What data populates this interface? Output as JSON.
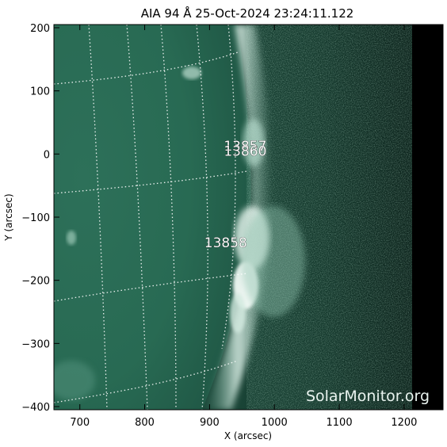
{
  "title": "AIA 94 Å 25-Oct-2024 23:24:11.122",
  "x_axis": {
    "label": "X (arcsec)",
    "range": [
      660,
      1260
    ],
    "ticks": [
      700,
      800,
      900,
      1000,
      1100,
      1200
    ],
    "tick_labels": [
      "700",
      "800",
      "900",
      "1000",
      "1100",
      "1200"
    ]
  },
  "y_axis": {
    "label": "Y (arcsec)",
    "range": [
      -405,
      205
    ],
    "ticks": [
      200,
      100,
      0,
      -100,
      -200,
      -300,
      -400
    ],
    "tick_labels": [
      "200",
      "100",
      "0",
      "−100",
      "−200",
      "−300",
      "−400"
    ]
  },
  "active_regions": [
    {
      "id": "13857",
      "label": "13857",
      "x": 955,
      "y": 13
    },
    {
      "id": "13860",
      "label": "13860",
      "x": 955,
      "y": 5
    },
    {
      "id": "13858",
      "label": "13858",
      "x": 925,
      "y": -140
    }
  ],
  "watermark": "SolarMonitor.org",
  "colors": {
    "disk": "#2a6b55",
    "disk_dark": "#1d4d3d",
    "limb_bright": "#e8f4ee",
    "offlimb": "#143a2e",
    "space": "#000000"
  }
}
